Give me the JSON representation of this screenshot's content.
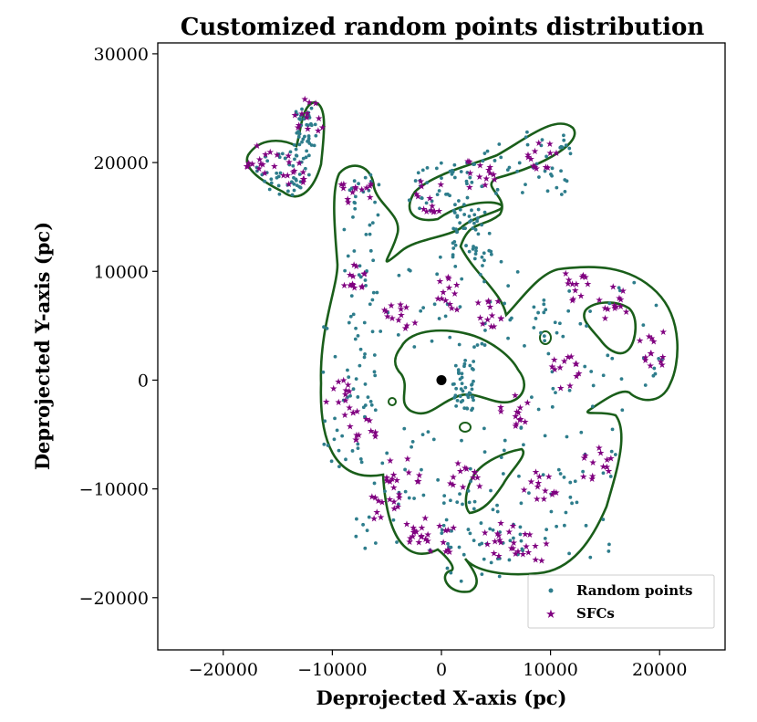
{
  "chart_data": {
    "type": "scatter",
    "title": "Customized random points distribution",
    "xlabel": "Deprojected X-axis (pc)",
    "ylabel": "Deprojected Y-axis (pc)",
    "xlim": [
      -26000,
      26000
    ],
    "ylim": [
      -24800,
      31000
    ],
    "xticks": [
      -20000,
      -10000,
      0,
      10000,
      20000
    ],
    "yticks": [
      -20000,
      -10000,
      0,
      10000,
      20000,
      30000
    ],
    "xtick_labels": [
      "−20000",
      "−10000",
      "0",
      "10000",
      "20000"
    ],
    "ytick_labels": [
      "−20000",
      "−10000",
      "0",
      "10000",
      "20000",
      "30000"
    ],
    "grid": false,
    "legend_position": "lower-right",
    "center_point": {
      "x": 0,
      "y": 0,
      "color": "#000000"
    },
    "boundary_color": "#1a5e1a",
    "series": [
      {
        "name": "Random points",
        "marker": "dot",
        "color": "#2e7d8c",
        "regions": [
          {
            "x": [
              -17000,
              -12000
            ],
            "y": [
              17000,
              21000
            ]
          },
          {
            "x": [
              -13500,
              -11500
            ],
            "y": [
              20000,
              25000
            ]
          },
          {
            "x": [
              -9000,
              -5500
            ],
            "y": [
              4000,
              19000
            ]
          },
          {
            "x": [
              -11000,
              -6000
            ],
            "y": [
              -8000,
              5000
            ]
          },
          {
            "x": [
              -8000,
              5000
            ],
            "y": [
              -16000,
              -4000
            ]
          },
          {
            "x": [
              -5000,
              10000
            ],
            "y": [
              3000,
              11500
            ]
          },
          {
            "x": [
              -3000,
              3000
            ],
            "y": [
              15000,
              20000
            ]
          },
          {
            "x": [
              3000,
              12000
            ],
            "y": [
              17000,
              23000
            ]
          },
          {
            "x": [
              1000,
              5000
            ],
            "y": [
              11000,
              16000
            ]
          },
          {
            "x": [
              8000,
              20500
            ],
            "y": [
              -3000,
              9500
            ]
          },
          {
            "x": [
              5000,
              16000
            ],
            "y": [
              -17000,
              -4000
            ]
          },
          {
            "x": [
              0,
              8000
            ],
            "y": [
              -18500,
              -10000
            ]
          },
          {
            "x": [
              1000,
              3000
            ],
            "y": [
              -3000,
              2000
            ]
          }
        ],
        "count": 560
      },
      {
        "name": "SFCs",
        "marker": "star",
        "color": "#800080",
        "clusters": [
          {
            "x": -14000,
            "y": 19000
          },
          {
            "x": -16500,
            "y": 20000
          },
          {
            "x": -12000,
            "y": 24500
          },
          {
            "x": -8500,
            "y": 9500
          },
          {
            "x": -8000,
            "y": 17500
          },
          {
            "x": -9000,
            "y": -1500
          },
          {
            "x": -7500,
            "y": -4500
          },
          {
            "x": -5000,
            "y": -11500
          },
          {
            "x": -2500,
            "y": -13500
          },
          {
            "x": -1000,
            "y": 17000
          },
          {
            "x": 3500,
            "y": 19000
          },
          {
            "x": 9000,
            "y": 21000
          },
          {
            "x": 1000,
            "y": 8000
          },
          {
            "x": 4500,
            "y": 6000
          },
          {
            "x": -4000,
            "y": 5500
          },
          {
            "x": 12000,
            "y": 8500
          },
          {
            "x": 16000,
            "y": 7000
          },
          {
            "x": 19500,
            "y": 3000
          },
          {
            "x": 11000,
            "y": 1000
          },
          {
            "x": 7000,
            "y": -3000
          },
          {
            "x": 14000,
            "y": -7500
          },
          {
            "x": 9000,
            "y": -10000
          },
          {
            "x": 5500,
            "y": -14500
          },
          {
            "x": 8000,
            "y": -15500
          },
          {
            "x": 2000,
            "y": -9000
          },
          {
            "x": -3500,
            "y": -8500
          },
          {
            "x": 0,
            "y": -14500
          }
        ],
        "count": 340
      }
    ]
  }
}
